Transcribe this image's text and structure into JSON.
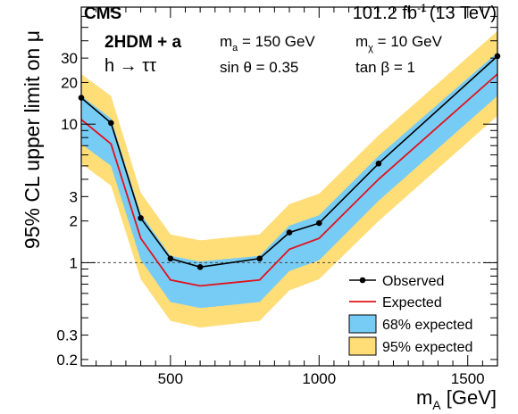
{
  "chart_data": {
    "type": "line",
    "experiment_label": "CMS",
    "lumi_label": "101.2 fb",
    "lumi_exponent": "-1",
    "energy_label": "(13 TeV)",
    "model_label": "2HDM + a",
    "decay_label": "h → ττ",
    "params": [
      {
        "symbol": "m",
        "sub": "a",
        "value": " = 150 GeV"
      },
      {
        "symbol": "m",
        "sub": "χ",
        "value": " = 10 GeV"
      },
      {
        "symbol": "sin θ",
        "sub": "",
        "value": " = 0.35"
      },
      {
        "symbol": "tan β",
        "sub": "",
        "value": " = 1"
      }
    ],
    "xlabel": "m",
    "xlabel_sub": "A",
    "xlabel_unit": " [GeV]",
    "ylabel": "95% CL upper limit on μ",
    "xlim": [
      200,
      1600
    ],
    "ylim": [
      0.18,
      70
    ],
    "ylog": true,
    "xticks": [
      500,
      1000,
      1500
    ],
    "yticks": [
      {
        "v": 0.2,
        "l": "0.2"
      },
      {
        "v": 0.3,
        "l": "0.3"
      },
      {
        "v": 1,
        "l": "1"
      },
      {
        "v": 2,
        "l": "2"
      },
      {
        "v": 3,
        "l": "3"
      },
      {
        "v": 10,
        "l": "10"
      },
      {
        "v": 20,
        "l": "20"
      },
      {
        "v": 30,
        "l": "30"
      }
    ],
    "reference_line": 1,
    "x": [
      200,
      300,
      400,
      500,
      600,
      800,
      900,
      1000,
      1200,
      1600
    ],
    "series": [
      {
        "name": "Observed",
        "values": [
          15.5,
          10.2,
          2.1,
          1.07,
          0.93,
          1.07,
          1.65,
          1.93,
          5.2,
          31
        ]
      },
      {
        "name": "Expected",
        "values": [
          10.8,
          7.2,
          1.5,
          0.75,
          0.68,
          0.75,
          1.25,
          1.5,
          4.0,
          23
        ]
      },
      {
        "name": "68% expected",
        "lower": [
          7.2,
          5.0,
          1.05,
          0.52,
          0.47,
          0.52,
          0.87,
          1.04,
          2.8,
          16
        ],
        "upper": [
          16,
          11,
          2.25,
          1.12,
          1.02,
          1.12,
          1.85,
          2.2,
          5.9,
          33
        ]
      },
      {
        "name": "95% expected",
        "lower": [
          5.2,
          3.6,
          0.76,
          0.38,
          0.34,
          0.38,
          0.63,
          0.76,
          2.0,
          11.5
        ],
        "upper": [
          23,
          16,
          3.2,
          1.6,
          1.45,
          1.6,
          2.65,
          3.15,
          8.3,
          47
        ]
      }
    ],
    "colors": {
      "band95": "#ffdd77",
      "band68": "#77ccf5",
      "expected": "#e0121e",
      "observed": "#000000"
    },
    "legend_position": "bottom-right"
  }
}
